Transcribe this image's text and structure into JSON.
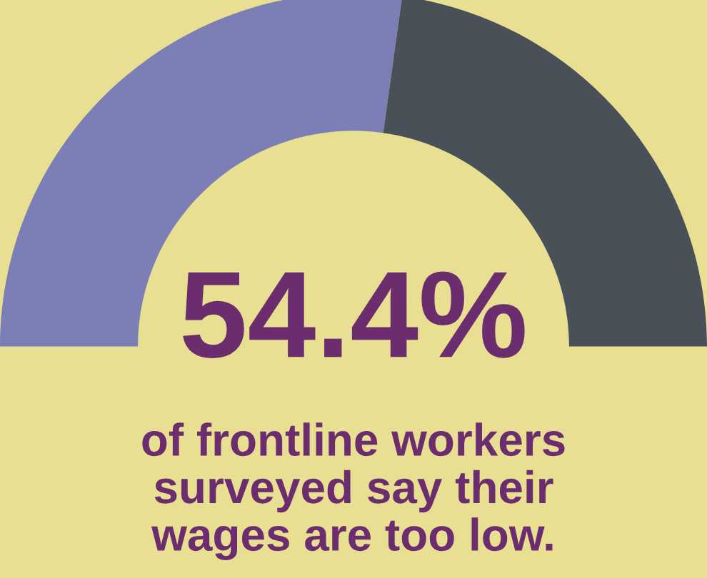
{
  "chart_data": {
    "type": "donut",
    "categories": [
      null,
      null
    ],
    "values": [
      54.4,
      45.6
    ],
    "colors": [
      "#7b7fb6",
      "#4a5058"
    ],
    "value_labels": [
      "54.4%",
      null
    ],
    "annotations": [
      "of frontline workers\nsurveyed say their\nwages are too low."
    ]
  }
}
